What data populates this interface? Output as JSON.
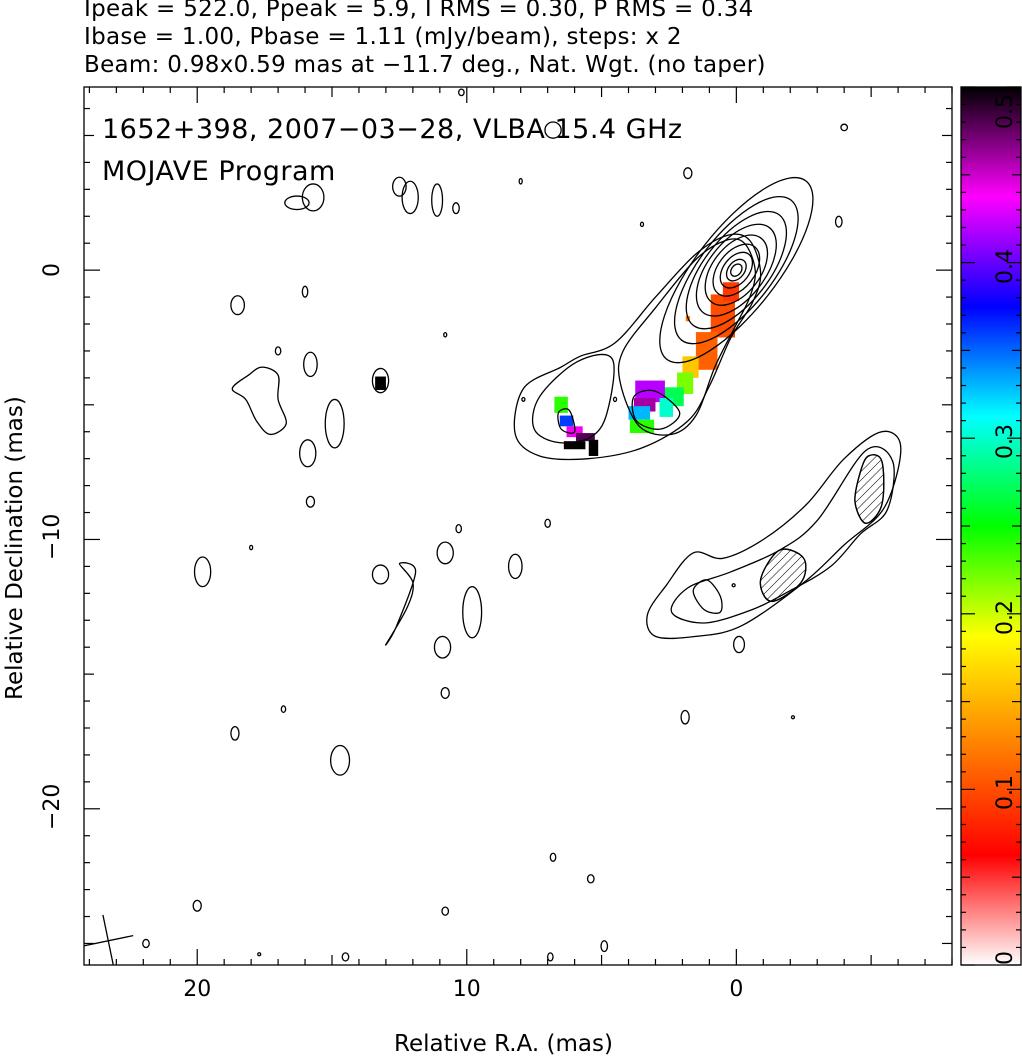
{
  "header": {
    "line1": "Ipeak = 522.0, Ppeak = 5.9, I RMS = 0.30, P RMS = 0.34",
    "line2": "Ibase = 1.00, Pbase = 1.11 (mJy/beam), steps: x 2",
    "line3": "Beam: 0.98x0.59 mas at −11.7 deg., Nat. Wgt. (no taper)"
  },
  "chart_data": {
    "type": "heatmap",
    "title": "1652+398, 2007−03−28, VLBA 15.4 GHz",
    "subtitle": "MOJAVE Program",
    "xlabel": "Relative R.A. (mas)",
    "ylabel": "Relative Declination (mas)",
    "xlim": [
      24.2,
      -8.0
    ],
    "ylim": [
      -25.8,
      6.8
    ],
    "x_ticks": [
      {
        "value": 20,
        "label": "20"
      },
      {
        "value": 10,
        "label": "10"
      },
      {
        "value": 0,
        "label": "0"
      }
    ],
    "y_ticks": [
      {
        "value": 0,
        "label": "0"
      },
      {
        "value": -10,
        "label": "−10"
      },
      {
        "value": -20,
        "label": "−20"
      }
    ],
    "colorbar": {
      "range": [
        0,
        0.5
      ],
      "ticks": [
        {
          "value": 0,
          "label": "0"
        },
        {
          "value": 0.1,
          "label": "0.1"
        },
        {
          "value": 0.2,
          "label": "0.2"
        },
        {
          "value": 0.3,
          "label": "0.3"
        },
        {
          "value": 0.4,
          "label": "0.4"
        },
        {
          "value": 0.5,
          "label": "0.5"
        }
      ],
      "colors": [
        "#ffffff",
        "#ff0000",
        "#ff8000",
        "#ffff00",
        "#00ff00",
        "#00ffff",
        "#0000ff",
        "#ff00ff",
        "#000000"
      ]
    },
    "core": {
      "x": 0,
      "y": 0,
      "pa_deg": 38,
      "contour_radii": [
        {
          "a": 0.25,
          "b": 0.18
        },
        {
          "a": 0.45,
          "b": 0.3
        },
        {
          "a": 0.75,
          "b": 0.48
        },
        {
          "a": 1.1,
          "b": 0.68
        },
        {
          "a": 1.5,
          "b": 0.88
        },
        {
          "a": 2.0,
          "b": 1.05
        },
        {
          "a": 2.6,
          "b": 1.2
        },
        {
          "a": 3.3,
          "b": 1.35
        },
        {
          "a": 4.2,
          "b": 1.5
        }
      ]
    },
    "jet_contours": [
      [
        [
          -0.9,
          -0.1
        ],
        [
          -0.5,
          1.1
        ],
        [
          0.3,
          1.3
        ],
        [
          1.5,
          0.6
        ],
        [
          3,
          -1
        ],
        [
          4.5,
          -2.7
        ],
        [
          5.8,
          -3.2
        ],
        [
          6.5,
          -3.6
        ],
        [
          7.9,
          -4.4
        ],
        [
          8.2,
          -6.1
        ],
        [
          7.3,
          -6.9
        ],
        [
          5.5,
          -7.0
        ],
        [
          3.5,
          -6.6
        ],
        [
          1.8,
          -5.6
        ],
        [
          1.0,
          -4.3
        ],
        [
          0.2,
          -2.5
        ],
        [
          -0.6,
          -1.2
        ]
      ],
      [
        [
          -0.7,
          0
        ],
        [
          -0.3,
          1.0
        ],
        [
          0.4,
          1.1
        ],
        [
          1.5,
          0.4
        ],
        [
          3,
          -1.4
        ],
        [
          4.2,
          -3
        ],
        [
          4.3,
          -4.2
        ],
        [
          3.6,
          -5.8
        ],
        [
          2.4,
          -6.1
        ],
        [
          1.5,
          -5.4
        ],
        [
          0.8,
          -3.6
        ],
        [
          0.1,
          -2.2
        ],
        [
          -0.5,
          -1.0
        ]
      ],
      [
        [
          4.6,
          -3.3
        ],
        [
          5.9,
          -3.4
        ],
        [
          7.3,
          -4.7
        ],
        [
          7.5,
          -5.9
        ],
        [
          6.6,
          -6.4
        ],
        [
          5.4,
          -6.2
        ],
        [
          4.8,
          -5.3
        ]
      ],
      [
        [
          3.0,
          -4.5
        ],
        [
          3.8,
          -4.7
        ],
        [
          3.7,
          -5.6
        ],
        [
          2.8,
          -5.9
        ],
        [
          2.1,
          -5.3
        ]
      ],
      [
        [
          6.2,
          -5.2
        ],
        [
          6.6,
          -5.3
        ],
        [
          6.5,
          -5.9
        ],
        [
          6.0,
          -6.0
        ]
      ]
    ],
    "lower_contours": [
      [
        [
          -5.4,
          -6.0
        ],
        [
          -6.1,
          -6.6
        ],
        [
          -5.5,
          -8.8
        ],
        [
          -4.0,
          -10.2
        ],
        [
          -2.5,
          -11.6
        ],
        [
          -0.2,
          -13.2
        ],
        [
          1.5,
          -13.6
        ],
        [
          3.0,
          -13.6
        ],
        [
          3.3,
          -12.8
        ],
        [
          2.6,
          -11.7
        ],
        [
          1.6,
          -10.5
        ],
        [
          0.5,
          -10.7
        ],
        [
          -1.0,
          -10.0
        ],
        [
          -2.6,
          -8.7
        ],
        [
          -4.0,
          -7.0
        ]
      ],
      [
        [
          -4.8,
          -6.7
        ],
        [
          -5.8,
          -7.1
        ],
        [
          -5.6,
          -8.9
        ],
        [
          -4.6,
          -9.8
        ],
        [
          -3.5,
          -11.0
        ],
        [
          -2.0,
          -11.9
        ],
        [
          -0.6,
          -12.6
        ],
        [
          1.2,
          -13.1
        ],
        [
          2.4,
          -12.7
        ],
        [
          1.8,
          -11.8
        ],
        [
          0.2,
          -11.2
        ],
        [
          -1.6,
          -10.4
        ],
        [
          -3.0,
          -9.3
        ]
      ],
      [
        [
          -4.9,
          -6.9
        ],
        [
          -5.4,
          -7.1
        ],
        [
          -5.4,
          -8.7
        ],
        [
          -4.8,
          -9.4
        ],
        [
          -4.4,
          -8.6
        ],
        [
          -4.6,
          -7.5
        ]
      ],
      [
        [
          -1.6,
          -10.4
        ],
        [
          -2.5,
          -10.7
        ],
        [
          -2.4,
          -11.6
        ],
        [
          -1.3,
          -12.3
        ],
        [
          -0.9,
          -11.5
        ]
      ],
      [
        [
          1.1,
          -11.5
        ],
        [
          1.6,
          -11.9
        ],
        [
          1.2,
          -12.6
        ],
        [
          0.6,
          -12.7
        ],
        [
          0.6,
          -12.1
        ]
      ]
    ],
    "noise_spots": [
      [
        18.5,
        -1.3,
        0.25,
        0.35
      ],
      [
        16,
        -0.8,
        0.1,
        0.2
      ],
      [
        13.2,
        -4.1,
        0.3,
        0.45
      ],
      [
        15.8,
        -3.5,
        0.25,
        0.45
      ],
      [
        14.9,
        -5.7,
        0.35,
        0.9
      ],
      [
        15.9,
        -6.8,
        0.3,
        0.5
      ],
      [
        15.8,
        -8.6,
        0.15,
        0.2
      ],
      [
        17.0,
        -3.0,
        0.1,
        0.15
      ],
      [
        19.8,
        -11.2,
        0.3,
        0.55
      ],
      [
        18.0,
        -10.3,
        0.05,
        0.08
      ],
      [
        13.2,
        -11.3,
        0.3,
        0.35
      ],
      [
        10.8,
        -10.5,
        0.3,
        0.4
      ],
      [
        10.3,
        -9.6,
        0.1,
        0.15
      ],
      [
        9.8,
        -12.7,
        0.35,
        0.95
      ],
      [
        10.9,
        -14.0,
        0.3,
        0.4
      ],
      [
        8.2,
        -11.0,
        0.25,
        0.45
      ],
      [
        7.0,
        -9.4,
        0.1,
        0.15
      ],
      [
        10.8,
        -15.7,
        0.15,
        0.2
      ],
      [
        16.8,
        -16.3,
        0.08,
        0.12
      ],
      [
        18.6,
        -17.2,
        0.15,
        0.25
      ],
      [
        14.7,
        -18.2,
        0.35,
        0.55
      ],
      [
        20.0,
        -23.6,
        0.15,
        0.2
      ],
      [
        10.8,
        -23.8,
        0.12,
        0.15
      ],
      [
        21.9,
        -25.0,
        0.12,
        0.15
      ],
      [
        17.7,
        -25.4,
        0.05,
        0.05
      ],
      [
        14.5,
        -25.5,
        0.12,
        0.15
      ],
      [
        6.8,
        -21.8,
        0.1,
        0.15
      ],
      [
        5.4,
        -22.6,
        0.12,
        0.15
      ],
      [
        6.9,
        -25.5,
        0.1,
        0.15
      ],
      [
        4.9,
        -25.1,
        0.12,
        0.2
      ],
      [
        1.9,
        -16.6,
        0.15,
        0.25
      ],
      [
        -2.1,
        -16.6,
        0.05,
        0.05
      ],
      [
        -0.1,
        -13.9,
        0.2,
        0.3
      ],
      [
        0.1,
        -11.7,
        0.05,
        0.05
      ],
      [
        4.5,
        -4.8,
        0.05,
        0.08
      ],
      [
        7.9,
        -4.8,
        0.05,
        0.07
      ],
      [
        10.8,
        -2.4,
        0.05,
        0.08
      ],
      [
        8.0,
        3.3,
        0.05,
        0.1
      ],
      [
        1.8,
        3.6,
        0.15,
        0.2
      ],
      [
        -3.8,
        1.8,
        0.12,
        0.2
      ],
      [
        -4.0,
        5.3,
        0.12,
        0.12
      ],
      [
        10.2,
        6.6,
        0.1,
        0.12
      ],
      [
        6.8,
        5.2,
        0.3,
        0.3
      ],
      [
        10.4,
        2.3,
        0.12,
        0.2
      ],
      [
        12.1,
        2.7,
        0.3,
        0.6
      ],
      [
        11.1,
        2.6,
        0.2,
        0.6
      ],
      [
        15.7,
        2.7,
        0.4,
        0.5
      ],
      [
        12.5,
        3.1,
        0.25,
        0.35
      ],
      [
        3.5,
        1.7,
        0.05,
        0.08
      ],
      [
        16.3,
        2.5,
        0.45,
        0.25
      ]
    ],
    "noise_paths": [
      [
        [
          17.6,
          -3.6
        ],
        [
          17.0,
          -3.9
        ],
        [
          17.0,
          -4.8
        ],
        [
          16.7,
          -5.7
        ],
        [
          17.3,
          -6.1
        ],
        [
          17.8,
          -5.6
        ],
        [
          18.2,
          -4.8
        ],
        [
          18.7,
          -4.4
        ],
        [
          18.1,
          -3.9
        ]
      ],
      [
        [
          12.5,
          -10.9
        ],
        [
          11.9,
          -11.2
        ],
        [
          12.6,
          -13.2
        ],
        [
          13.0,
          -13.9
        ],
        [
          12.2,
          -12.5
        ],
        [
          12.0,
          -11.6
        ]
      ]
    ],
    "beam": {
      "x": 23.3,
      "y": -24.9,
      "major_mas": 0.98,
      "minor_mas": 0.59,
      "pa_deg": -11.7
    },
    "pol_pixels": [
      {
        "x": 0.5,
        "y": -1.7,
        "v": 0.1,
        "w": 0.9,
        "h": 1.6
      },
      {
        "x": 1.1,
        "y": -3.0,
        "v": 0.11,
        "w": 0.8,
        "h": 1.4
      },
      {
        "x": 0.2,
        "y": -0.8,
        "v": 0.09,
        "w": 0.6,
        "h": 0.7
      },
      {
        "x": 1.7,
        "y": -3.6,
        "v": 0.16,
        "w": 0.6,
        "h": 0.8
      },
      {
        "x": 1.9,
        "y": -4.2,
        "v": 0.22,
        "w": 0.6,
        "h": 0.8
      },
      {
        "x": 2.4,
        "y": -4.7,
        "v": 0.27,
        "w": 0.9,
        "h": 0.7
      },
      {
        "x": 3.2,
        "y": -4.5,
        "v": 0.42,
        "w": 1.1,
        "h": 0.8
      },
      {
        "x": 3.4,
        "y": -5.0,
        "v": 0.46,
        "w": 0.8,
        "h": 0.5
      },
      {
        "x": 3.6,
        "y": -5.3,
        "v": 0.33,
        "w": 0.8,
        "h": 0.5
      },
      {
        "x": 3.5,
        "y": -5.8,
        "v": 0.24,
        "w": 0.9,
        "h": 0.5
      },
      {
        "x": 2.6,
        "y": -5.1,
        "v": 0.3,
        "w": 0.5,
        "h": 0.7
      },
      {
        "x": 6.5,
        "y": -5.0,
        "v": 0.24,
        "w": 0.5,
        "h": 0.6
      },
      {
        "x": 6.3,
        "y": -5.6,
        "v": 0.36,
        "w": 0.5,
        "h": 0.4
      },
      {
        "x": 6.0,
        "y": -6.0,
        "v": 0.44,
        "w": 0.6,
        "h": 0.4
      },
      {
        "x": 5.6,
        "y": -6.2,
        "v": 0.48,
        "w": 0.7,
        "h": 0.3
      },
      {
        "x": 6.0,
        "y": -6.5,
        "v": 0.5,
        "w": 0.8,
        "h": 0.3
      },
      {
        "x": 5.3,
        "y": -6.6,
        "v": 0.5,
        "w": 0.35,
        "h": 0.6
      },
      {
        "x": 13.2,
        "y": -4.2,
        "v": 0.5,
        "w": 0.4,
        "h": 0.5
      },
      {
        "x": 1.8,
        "y": -1.8,
        "v": 0.12,
        "w": 0.15,
        "h": 0.2
      }
    ]
  }
}
